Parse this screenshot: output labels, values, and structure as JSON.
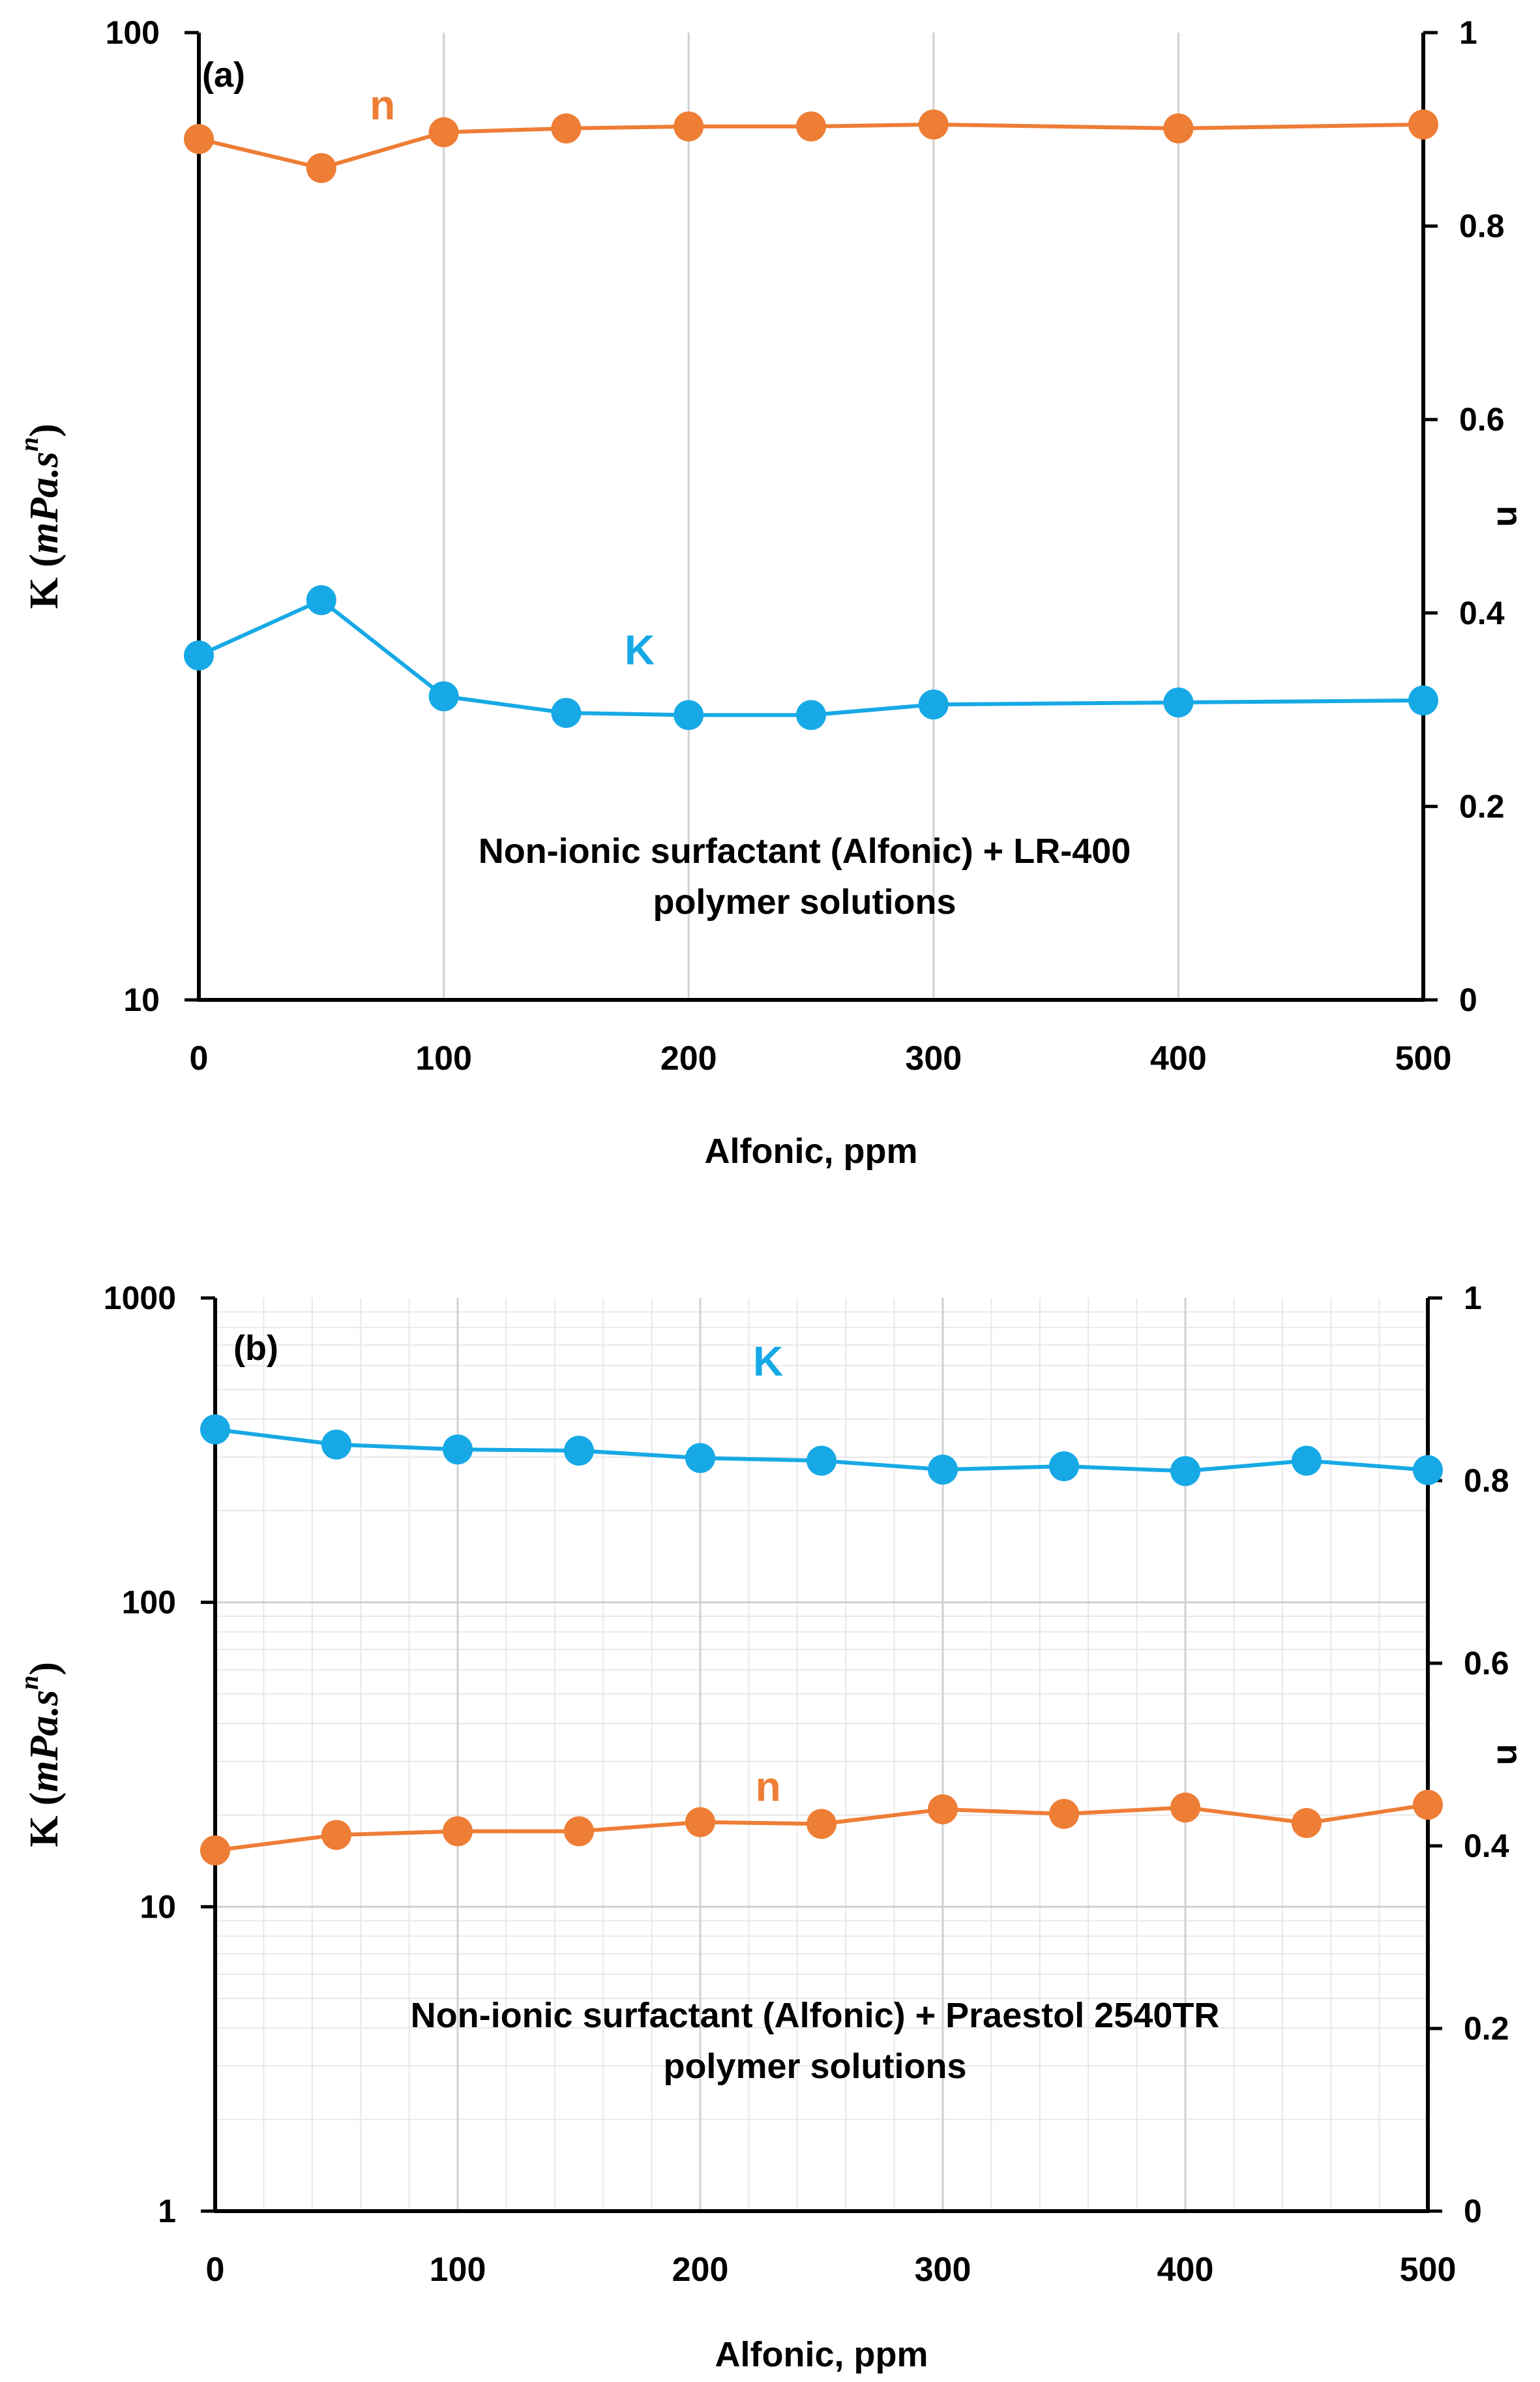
{
  "colors": {
    "K": "#17a9e6",
    "n": "#ee7d35",
    "axis": "#000000",
    "grid_major": "#d0d0d0",
    "grid_minor": "#e8e8e8"
  },
  "chart_data": [
    {
      "type": "line",
      "panel_label": "(a)",
      "xlabel": "Alfonic, ppm",
      "ylabel_left": {
        "prefix": "K",
        "paren_open": "(",
        "expr": "mPa.s",
        "sup": "n",
        "paren_close": ")"
      },
      "ylabel_right": "n",
      "x_ticks": [
        0,
        100,
        200,
        300,
        400,
        500
      ],
      "xlim": [
        0,
        500
      ],
      "y_left": {
        "scale": "log",
        "lim": [
          10,
          100
        ],
        "ticks": [
          "10",
          "100"
        ]
      },
      "y_right": {
        "scale": "linear",
        "lim": [
          0,
          1
        ],
        "ticks": [
          "0",
          "0.2",
          "0.4",
          "0.6",
          "0.8",
          "1"
        ]
      },
      "grid": "vertical major lines",
      "annotation_lines": [
        "Non-ionic surfactant (Alfonic) + LR-400",
        "polymer solutions"
      ],
      "series": [
        {
          "name": "K",
          "axis": "left",
          "color": "#17a9e6",
          "label_pos": {
            "x": 180,
            "y": 23
          },
          "x": [
            0,
            50,
            100,
            150,
            200,
            250,
            300,
            400,
            500
          ],
          "y": [
            22.7,
            25.9,
            20.6,
            19.8,
            19.7,
            19.7,
            20.2,
            20.3,
            20.4
          ]
        },
        {
          "name": "n",
          "axis": "right",
          "color": "#ee7d35",
          "label_pos": {
            "x": 75,
            "y": 0.925
          },
          "x": [
            0,
            50,
            100,
            150,
            200,
            250,
            300,
            400,
            500
          ],
          "y": [
            0.89,
            0.86,
            0.897,
            0.901,
            0.903,
            0.903,
            0.905,
            0.901,
            0.905
          ]
        }
      ]
    },
    {
      "type": "line",
      "panel_label": "(b)",
      "xlabel": "Alfonic, ppm",
      "ylabel_left": {
        "prefix": "K",
        "paren_open": "(",
        "expr": "mPa.s",
        "sup": "n",
        "paren_close": ")"
      },
      "ylabel_right": "n",
      "x_ticks": [
        0,
        100,
        200,
        300,
        400,
        500
      ],
      "xlim": [
        0,
        500
      ],
      "y_left": {
        "scale": "log",
        "lim": [
          1,
          1000
        ],
        "ticks": [
          "1",
          "10",
          "100",
          "1000"
        ]
      },
      "y_right": {
        "scale": "linear",
        "lim": [
          0,
          1
        ],
        "ticks": [
          "0",
          "0.2",
          "0.4",
          "0.6",
          "0.8",
          "1"
        ]
      },
      "grid": "major and minor lines",
      "annotation_lines": [
        "Non-ionic surfactant (Alfonic) + Praestol 2540TR",
        "polymer solutions"
      ],
      "series": [
        {
          "name": "K",
          "axis": "left",
          "color": "#17a9e6",
          "label_pos": {
            "x": 228,
            "y": 620
          },
          "x": [
            0,
            50,
            100,
            150,
            200,
            250,
            300,
            350,
            400,
            450,
            500
          ],
          "y": [
            370,
            330,
            318,
            315,
            298,
            292,
            273,
            280,
            270,
            292,
            272
          ]
        },
        {
          "name": "n",
          "axis": "right",
          "color": "#ee7d35",
          "label_pos": {
            "x": 228,
            "y": 0.465
          },
          "x": [
            0,
            50,
            100,
            150,
            200,
            250,
            300,
            350,
            400,
            450,
            500
          ],
          "y": [
            0.395,
            0.412,
            0.416,
            0.416,
            0.426,
            0.424,
            0.44,
            0.435,
            0.442,
            0.425,
            0.445
          ]
        }
      ]
    }
  ]
}
